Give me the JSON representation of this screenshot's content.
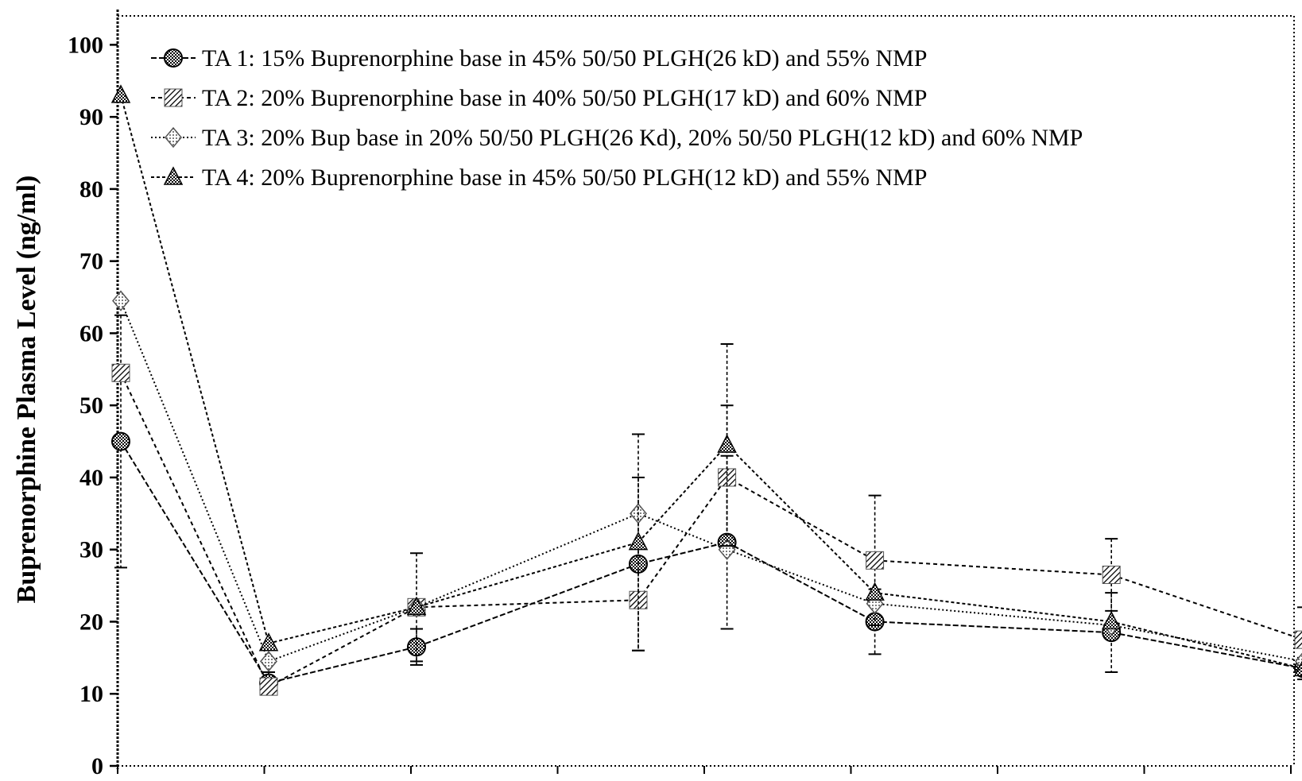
{
  "chart_data": {
    "type": "line",
    "title": "",
    "xlabel": "",
    "ylabel": "Buprenorphine Plasma Level (ng/ml)",
    "ylim": [
      0,
      105
    ],
    "y_ticks": [
      "0",
      "10",
      "20",
      "30",
      "40",
      "50",
      "60",
      "70",
      "80",
      "90",
      "100"
    ],
    "x_tick_count": 9,
    "grid": false,
    "legend_position": "top",
    "series": [
      {
        "name": "TA 1: 15% Buprenorphine base in 45% 50/50 PLGH(26 kD) and 55% NMP",
        "marker": "circle",
        "x": [
          0,
          1,
          2,
          3.5,
          4.1,
          5.1,
          6.7,
          8
        ],
        "values": [
          45,
          11.5,
          16.5,
          28,
          31,
          20,
          18.5,
          13.5
        ],
        "err": [
          17.5,
          1.5,
          2.5,
          12,
          12,
          4.5,
          5.5,
          1.5
        ]
      },
      {
        "name": "TA 2: 20% Buprenorphine base in 40% 50/50 PLGH(17 kD) and 60% NMP",
        "marker": "hatched-square",
        "x": [
          0,
          1,
          2,
          3.5,
          4.1,
          5.1,
          6.7,
          8
        ],
        "values": [
          54.5,
          11,
          22,
          23,
          40,
          28.5,
          26.5,
          17.5
        ],
        "err": [
          0,
          0,
          7.5,
          0,
          10,
          9,
          5,
          4.5
        ]
      },
      {
        "name": "TA 3: 20% Bup base in 20% 50/50 PLGH(26 Kd), 20% 50/50 PLGH(12 kD) and 60% NMP",
        "marker": "diamond",
        "x": [
          0,
          1,
          2,
          3.5,
          4.1,
          5.1,
          6.7,
          8
        ],
        "values": [
          64.5,
          14.5,
          22,
          35,
          30,
          22.5,
          19.5,
          14.5
        ],
        "err": [
          0,
          0,
          0,
          0,
          0,
          0,
          0,
          0
        ]
      },
      {
        "name": "TA 4: 20% Buprenorphine base in 45% 50/50 PLGH(12 kD) and 55% NMP",
        "marker": "triangle",
        "x": [
          0,
          1,
          2,
          3.5,
          4.1,
          5.1,
          6.7,
          8
        ],
        "values": [
          93,
          17,
          22,
          31,
          44.5,
          24,
          20,
          13.5
        ],
        "err": [
          0,
          0,
          0,
          15,
          14,
          0,
          0,
          0
        ]
      }
    ]
  }
}
